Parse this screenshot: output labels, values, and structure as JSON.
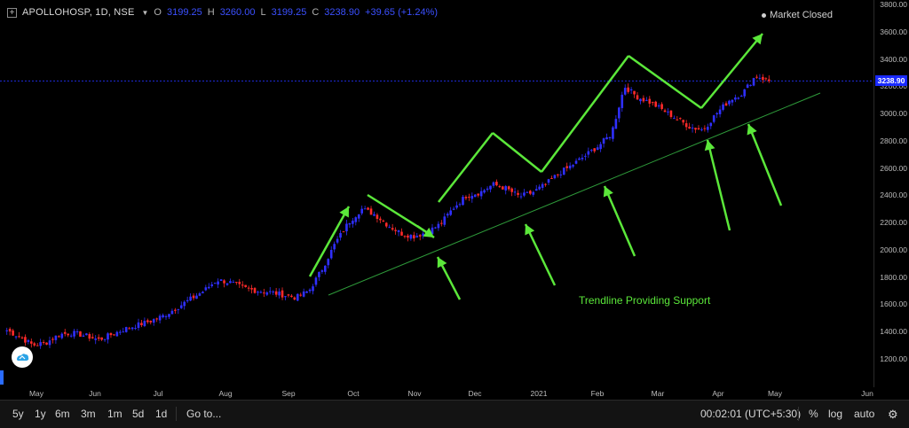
{
  "legend": {
    "symbol": "APOLLOHOSP, 1D, NSE",
    "open_label": "O",
    "open": "3199.25",
    "high_label": "H",
    "high": "3260.00",
    "low_label": "L",
    "low": "3199.25",
    "close_label": "C",
    "close": "3238.90",
    "change": "+39.65 (+1.24%)"
  },
  "market_status": "Market Closed",
  "last_price": "3238.90",
  "annotation": "Trendline Providing Support",
  "price_axis": [
    "3800.00",
    "3600.00",
    "3400.00",
    "3200.00",
    "3000.00",
    "2800.00",
    "2600.00",
    "2400.00",
    "2200.00",
    "2000.00",
    "1800.00",
    "1600.00",
    "1400.00",
    "1200.00"
  ],
  "time_axis": [
    "May",
    "Jun",
    "Jul",
    "Aug",
    "Sep",
    "Oct",
    "Nov",
    "Dec",
    "2021",
    "Feb",
    "Mar",
    "Apr",
    "May",
    "Jun"
  ],
  "toolbar": {
    "ranges": [
      "5y",
      "1y",
      "6m",
      "3m",
      "1m",
      "5d",
      "1d"
    ],
    "goto": "Go to...",
    "clock": "00:02:01 (UTC+5:30)",
    "percent": "%",
    "log": "log",
    "auto": "auto"
  },
  "colors": {
    "up": "#2f2fff",
    "down": "#ff2a2a",
    "annotation": "#5be73a",
    "trendline": "#2e9a3a",
    "price_line": "#2233ff"
  },
  "icons": [
    "plus-icon",
    "caret-down-icon",
    "logo-icon",
    "gear-icon"
  ],
  "chart_data": {
    "type": "candlestick",
    "ylim": [
      1100,
      3850
    ],
    "x": [
      "May",
      "Jun",
      "Jul",
      "Aug",
      "Sep",
      "Oct",
      "Nov",
      "Dec",
      "2021",
      "Feb",
      "Mar",
      "Apr",
      "May",
      "Jun"
    ],
    "series": [
      {
        "name": "",
        "closes": [
          1410,
          1360,
          1300,
          1320,
          1380,
          1390,
          1370,
          1340,
          1380,
          1420,
          1450,
          1480,
          1520,
          1580,
          1640,
          1700,
          1780,
          1760,
          1720,
          1700,
          1690,
          1670,
          1650,
          1700,
          1860,
          2050,
          2200,
          2300,
          2260,
          2180,
          2120,
          2100,
          2130,
          2190,
          2310,
          2400,
          2420,
          2480,
          2450,
          2390,
          2420,
          2480,
          2560,
          2620,
          2690,
          2760,
          2850,
          3200,
          3120,
          3080,
          3020,
          2960,
          2900,
          2880,
          3000,
          3100,
          3150,
          3280,
          3238
        ]
      }
    ]
  }
}
